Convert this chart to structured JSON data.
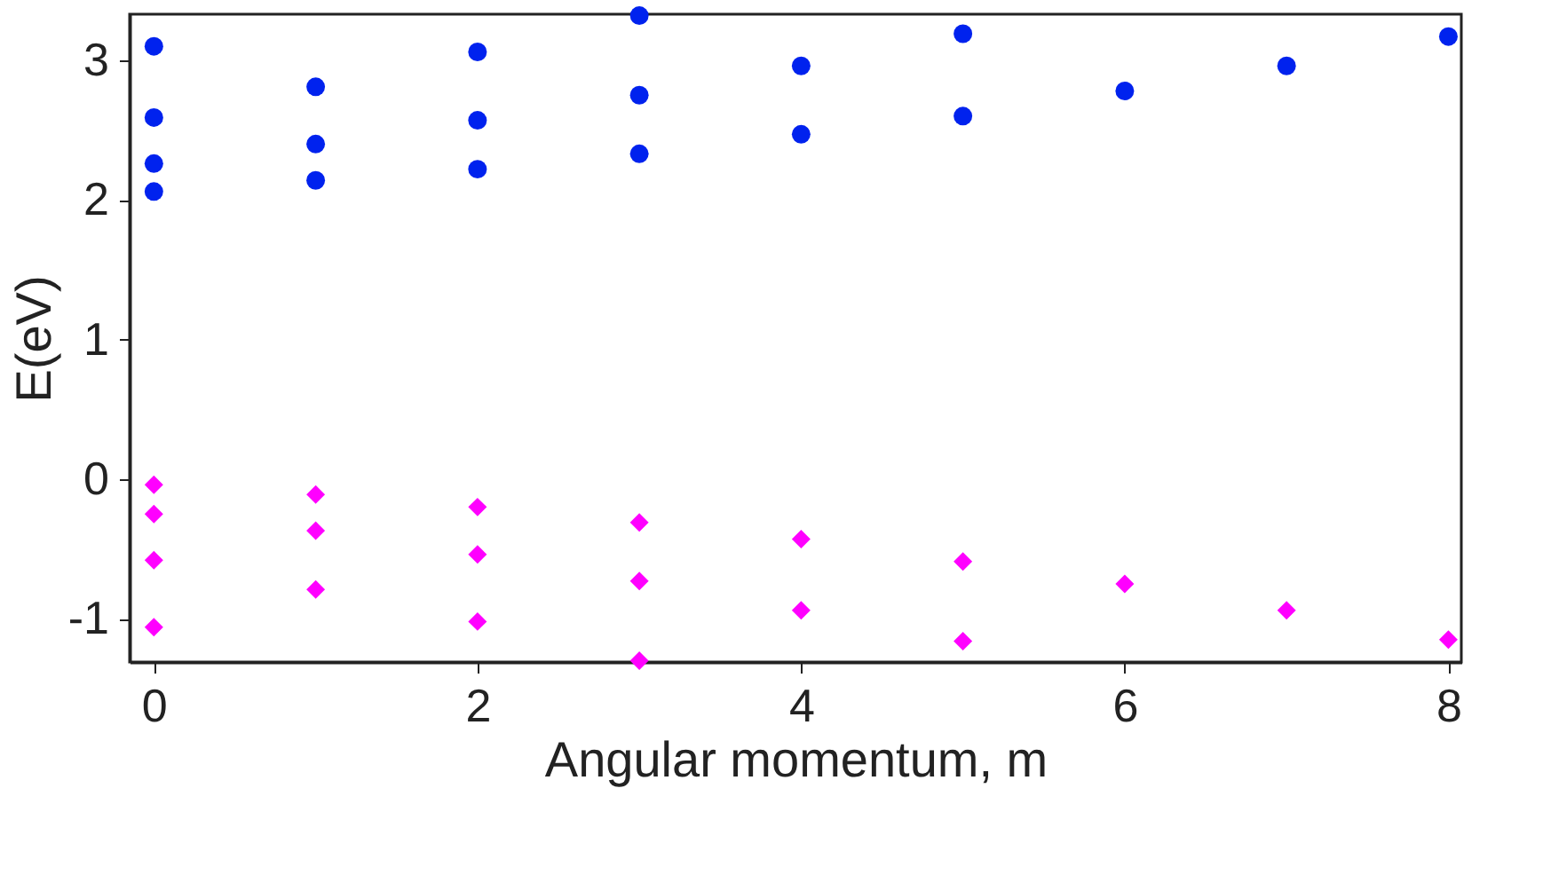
{
  "chart_data": {
    "type": "scatter",
    "xlabel": "Angular momentum, m",
    "ylabel": "E(eV)",
    "xlim": [
      -0.15,
      8.08
    ],
    "ylim": [
      -1.31,
      3.33
    ],
    "xticks": [
      0,
      2,
      4,
      6,
      8
    ],
    "yticks": [
      -1,
      0,
      1,
      2,
      3
    ],
    "grid": false,
    "series": [
      {
        "color": "#0022ee",
        "marker": "circle",
        "x": [
          0,
          0,
          0,
          0,
          1,
          1,
          1,
          2,
          2,
          2,
          3,
          3,
          3,
          4,
          4,
          5,
          5,
          6,
          7,
          8
        ],
        "values": [
          3.1,
          2.59,
          2.26,
          2.06,
          2.81,
          2.4,
          2.14,
          3.06,
          2.57,
          2.22,
          3.32,
          2.75,
          2.33,
          2.96,
          2.47,
          3.19,
          2.6,
          2.78,
          2.96,
          3.17
        ]
      },
      {
        "color": "#ff00ff",
        "marker": "diamond",
        "x": [
          0,
          0,
          0,
          0,
          1,
          1,
          1,
          2,
          2,
          2,
          3,
          3,
          3,
          4,
          4,
          5,
          5,
          6,
          7,
          8
        ],
        "values": [
          -0.04,
          -0.25,
          -0.58,
          -1.06,
          -0.11,
          -0.37,
          -0.79,
          -0.2,
          -0.54,
          -1.02,
          -0.31,
          -0.73,
          -1.3,
          -0.43,
          -0.94,
          -0.59,
          -1.16,
          -0.75,
          -0.94,
          -1.15
        ]
      }
    ]
  }
}
